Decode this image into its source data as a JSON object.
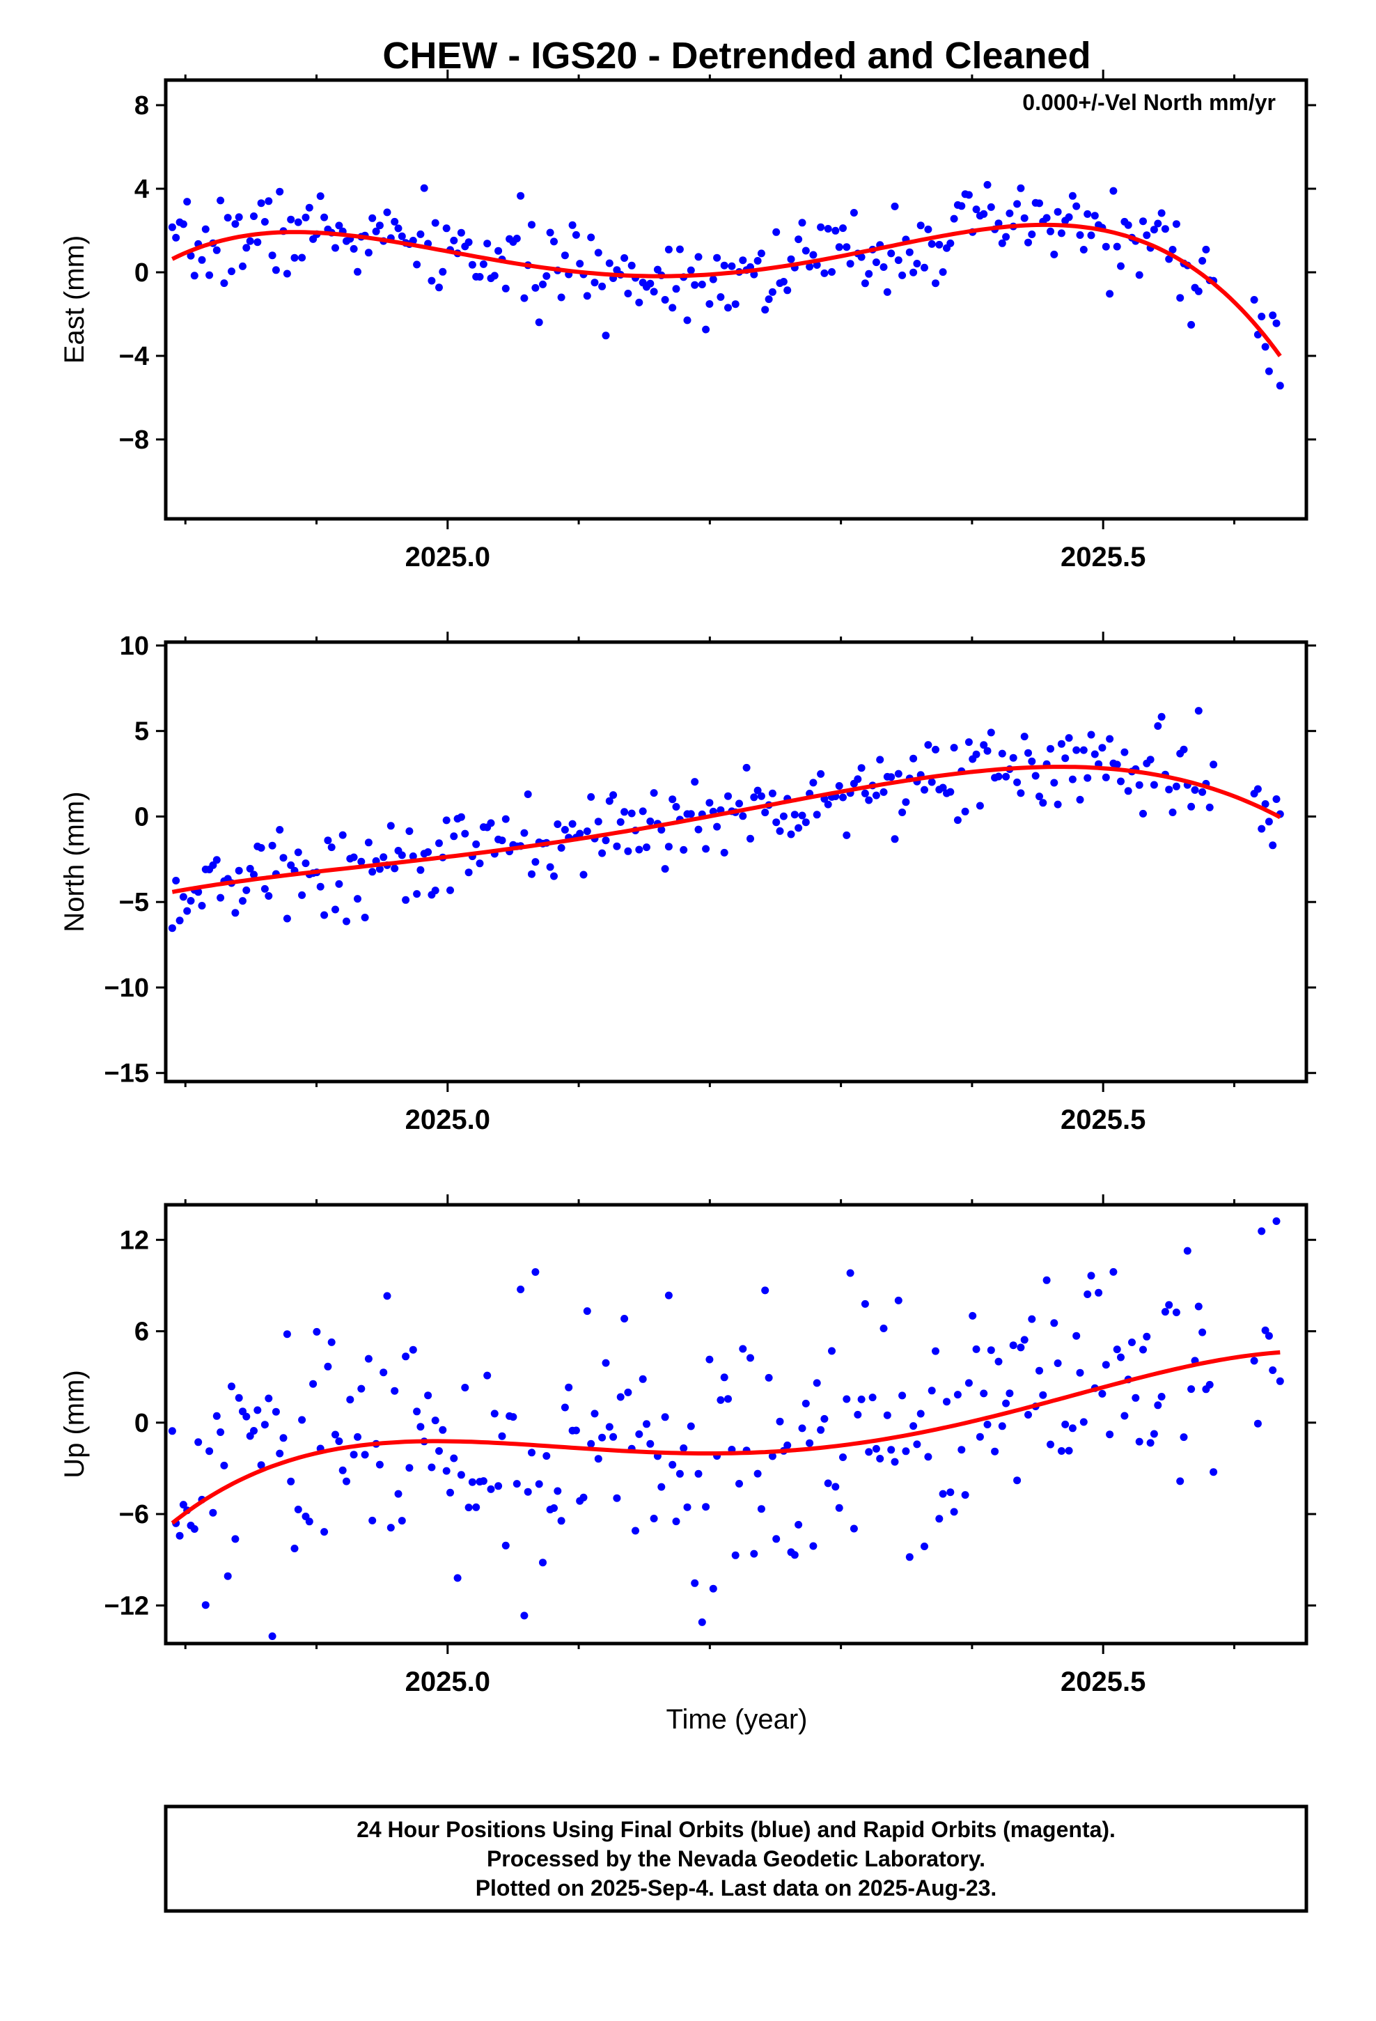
{
  "title": "CHEW - IGS20 - Detrended and Cleaned",
  "xlabel": "Time (year)",
  "x_tick_labels": [
    "2025.0",
    "2025.5"
  ],
  "annotation": "0.000+/-Vel North mm/yr",
  "footer": [
    "24 Hour Positions Using Final Orbits (blue) and Rapid Orbits (magenta).",
    "Processed by the Nevada Geodetic Laboratory.",
    "Plotted on 2025-Sep-4. Last data on 2025-Aug-23."
  ],
  "colors": {
    "points": "#0000ff",
    "fit": "#ff0000",
    "frame": "#000000"
  },
  "chart_data": [
    {
      "type": "scatter",
      "ylabel": "East (mm)",
      "xlim": [
        2024.785,
        2025.655
      ],
      "ylim": [
        -11.8,
        9.2
      ],
      "yticks": [
        -8,
        -4,
        0,
        4,
        8
      ],
      "y_tick_labels": [
        "−8",
        "−4",
        "0",
        "4",
        "8"
      ],
      "xticks_major": [
        2025.0,
        2025.5
      ],
      "xticks_minor": [
        2024.8,
        2024.9,
        2025.1,
        2025.2,
        2025.3,
        2025.4,
        2025.6
      ],
      "fit_poly": [
        0,
        6.3,
        50,
        -72,
        -340
      ],
      "fit_x0": 2025.22,
      "noise": 1.05,
      "seed": 7,
      "n_points": 300,
      "gaps": [
        [
          2025.585,
          2025.615
        ]
      ]
    },
    {
      "type": "scatter",
      "ylabel": "North (mm)",
      "xlim": [
        2024.785,
        2025.655
      ],
      "ylim": [
        -15.5,
        10.2
      ],
      "yticks": [
        -15,
        -10,
        -5,
        0,
        5,
        10
      ],
      "y_tick_labels": [
        "−15",
        "−10",
        "−5",
        "0",
        "5",
        "10"
      ],
      "xticks_major": [
        2025.0,
        2025.5
      ],
      "xticks_minor": [
        2024.8,
        2024.9,
        2025.1,
        2025.2,
        2025.3,
        2025.4,
        2025.6
      ],
      "fit_poly": [
        0.3,
        14.5,
        4,
        -55,
        -105
      ],
      "fit_x0": 2025.22,
      "noise": 1.3,
      "seed": 13,
      "n_points": 300,
      "gaps": [
        [
          2025.585,
          2025.615
        ]
      ]
    },
    {
      "type": "scatter",
      "ylabel": "Up (mm)",
      "xlim": [
        2024.785,
        2025.655
      ],
      "ylim": [
        -14.5,
        14.3
      ],
      "yticks": [
        -12,
        -6,
        0,
        6,
        12
      ],
      "y_tick_labels": [
        "−12",
        "−6",
        "0",
        "6",
        "12"
      ],
      "xticks_major": [
        2025.0,
        2025.5
      ],
      "xticks_minor": [
        2024.8,
        2024.9,
        2025.1,
        2025.2,
        2025.3,
        2025.4,
        2025.6
      ],
      "fit_poly": [
        -2.0,
        2.0,
        50,
        60,
        -240
      ],
      "fit_x0": 2025.22,
      "noise": 4.3,
      "seed": 29,
      "n_points": 300,
      "gaps": [
        [
          2025.585,
          2025.615
        ]
      ]
    }
  ]
}
